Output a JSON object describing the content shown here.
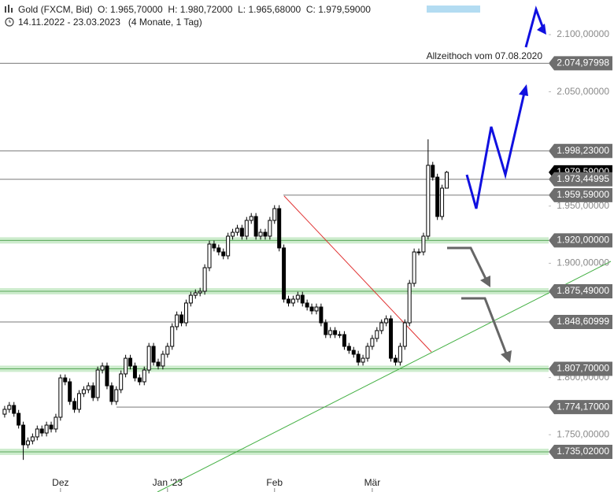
{
  "chart_data": {
    "type": "candlestick",
    "title": "Gold (FXCM, Bid)",
    "ohlc_text": "O: 1.965,70000  H: 1.980,72000  L: 1.965,68000  C: 1.979,59000",
    "range_text": "14.11.2022 - 23.03.2023   (4 Monate, 1 Tag)",
    "annotation": "Allzeithoch vom 07.08.2020",
    "ylim": [
      1717.1,
      2130.3
    ],
    "xlim": [
      -1,
      100.5
    ],
    "yticks": [
      {
        "value": 2100,
        "label": "2.100,00000"
      },
      {
        "value": 2050,
        "label": "2.050,00000"
      },
      {
        "value": 1950,
        "label": "1.950,00000"
      },
      {
        "value": 1900,
        "label": "1.900,00000"
      },
      {
        "value": 1800,
        "label": "1.800,00000"
      },
      {
        "value": 1750,
        "label": "1.750,00000"
      }
    ],
    "xticks": [
      {
        "value": 12,
        "label": "Dez"
      },
      {
        "value": 35,
        "label": "Jan '23"
      },
      {
        "value": 58,
        "label": "Feb"
      },
      {
        "value": 79,
        "label": "Mär"
      }
    ],
    "last_price": {
      "value": 1979.59,
      "label": "1.979,59000"
    },
    "levels": [
      {
        "value": 2074.97998,
        "label": "2.074,97998",
        "kind": "resistance"
      },
      {
        "value": 1998.23,
        "label": "1.998,23000",
        "kind": "resistance"
      },
      {
        "value": 1973.44995,
        "label": "1.973,44995",
        "kind": "resistance"
      },
      {
        "value": 1959.59,
        "label": "1.959,59000",
        "kind": "resistance"
      },
      {
        "value": 1920,
        "label": "1.920,00000",
        "kind": "zone"
      },
      {
        "value": 1875.49,
        "label": "1.875,49000",
        "kind": "zone"
      },
      {
        "value": 1848.60999,
        "label": "1.848,60999",
        "kind": "resistance"
      },
      {
        "value": 1807.7,
        "label": "1.807,70000",
        "kind": "zone"
      },
      {
        "value": 1774.17,
        "label": "1.774,17000",
        "kind": "resistance"
      },
      {
        "value": 1735.02,
        "label": "1.735,02000",
        "kind": "zone"
      }
    ],
    "up_color": "#ffffff",
    "down_color": "#000000",
    "open": [
      1768.0,
      1772.2,
      1775.6,
      1768.7,
      1758.4,
      1741.2,
      1744.6,
      1748.1,
      1755.0,
      1751.5,
      1758.4,
      1755.0,
      1765.3,
      1799.7,
      1796.3,
      1779.1,
      1772.2,
      1786.0,
      1789.4,
      1792.8,
      1782.5,
      1806.6,
      1810.1,
      1792.8,
      1779.1,
      1789.4,
      1803.2,
      1816.9,
      1810.1,
      1799.7,
      1796.3,
      1806.6,
      1827.3,
      1813.5,
      1810.1,
      1820.4,
      1827.3,
      1844.5,
      1854.8,
      1847.9,
      1865.2,
      1872.0,
      1874.1,
      1875.5,
      1896.1,
      1916.8,
      1913.4,
      1909.9,
      1906.5,
      1923.7,
      1927.1,
      1930.6,
      1923.7,
      1937.5,
      1940.9,
      1923.7,
      1927.1,
      1923.7,
      1937.5,
      1947.8,
      1913.4,
      1868.6,
      1865.2,
      1868.6,
      1872.0,
      1865.2,
      1861.7,
      1858.3,
      1861.7,
      1847.9,
      1837.6,
      1841.1,
      1837.6,
      1837.6,
      1827.3,
      1823.8,
      1820.4,
      1813.5,
      1816.9,
      1827.3,
      1834.2,
      1841.1,
      1847.9,
      1851.4,
      1816.9,
      1813.5,
      1827.3,
      1847.9,
      1882.4,
      1909.9,
      1909.9,
      1923.7,
      1985.7,
      1975.3,
      1940.9,
      1965.7
    ],
    "high": [
      1775.2,
      1778.6,
      1778.6,
      1771.7,
      1761.4,
      1747.6,
      1751.1,
      1758.0,
      1758.0,
      1761.4,
      1761.4,
      1768.3,
      1802.7,
      1802.7,
      1799.3,
      1782.1,
      1789.0,
      1792.4,
      1795.8,
      1795.8,
      1809.6,
      1813.1,
      1813.1,
      1795.8,
      1792.4,
      1806.2,
      1819.9,
      1819.9,
      1813.1,
      1802.7,
      1809.6,
      1830.3,
      1830.3,
      1816.5,
      1823.4,
      1830.3,
      1847.5,
      1857.8,
      1857.8,
      1868.2,
      1875.0,
      1877.1,
      1878.5,
      1899.1,
      1919.8,
      1919.8,
      1916.4,
      1912.9,
      1926.7,
      1930.1,
      1933.6,
      1933.6,
      1940.5,
      1943.9,
      1943.9,
      1930.1,
      1930.1,
      1940.5,
      1950.8,
      1950.8,
      1916.4,
      1871.6,
      1871.6,
      1875.0,
      1875.0,
      1868.2,
      1864.7,
      1864.7,
      1864.7,
      1850.9,
      1844.1,
      1844.1,
      1840.6,
      1840.6,
      1830.3,
      1826.8,
      1823.4,
      1819.9,
      1830.3,
      1837.2,
      1844.1,
      1850.9,
      1854.4,
      1854.4,
      1819.9,
      1830.3,
      1850.9,
      1885.4,
      1912.9,
      1912.9,
      1926.7,
      2008.4,
      1988.7,
      1978.3,
      1968.7,
      1980.72
    ],
    "low": [
      1765.0,
      1769.2,
      1765.7,
      1755.4,
      1728.0,
      1738.2,
      1741.6,
      1745.1,
      1748.5,
      1748.5,
      1752.0,
      1752.0,
      1762.3,
      1793.3,
      1776.1,
      1769.2,
      1769.2,
      1783.0,
      1786.4,
      1779.5,
      1779.5,
      1803.6,
      1789.8,
      1776.1,
      1776.1,
      1786.4,
      1800.2,
      1807.1,
      1796.7,
      1793.3,
      1793.3,
      1803.6,
      1810.5,
      1807.1,
      1807.1,
      1817.4,
      1824.3,
      1841.5,
      1844.9,
      1844.9,
      1862.2,
      1869.0,
      1871.1,
      1872.5,
      1893.1,
      1910.4,
      1906.9,
      1903.5,
      1903.5,
      1920.7,
      1924.1,
      1920.7,
      1920.7,
      1934.5,
      1920.7,
      1920.7,
      1920.7,
      1920.7,
      1934.5,
      1910.4,
      1865.6,
      1862.2,
      1862.2,
      1865.6,
      1862.2,
      1858.7,
      1855.3,
      1855.3,
      1844.9,
      1834.6,
      1834.6,
      1834.6,
      1834.6,
      1824.3,
      1820.8,
      1817.4,
      1810.5,
      1810.5,
      1813.9,
      1824.3,
      1831.2,
      1838.1,
      1844.9,
      1813.9,
      1810.5,
      1810.5,
      1824.3,
      1844.9,
      1879.4,
      1906.9,
      1906.9,
      1920.7,
      1972.3,
      1937.9,
      1937.9,
      1965.68
    ],
    "close": [
      1772.2,
      1775.6,
      1768.7,
      1758.4,
      1741.2,
      1744.6,
      1748.1,
      1755.0,
      1751.5,
      1758.4,
      1755.0,
      1765.3,
      1799.7,
      1796.3,
      1779.1,
      1772.2,
      1786.0,
      1789.4,
      1792.8,
      1782.5,
      1806.6,
      1810.1,
      1792.8,
      1779.1,
      1789.4,
      1803.2,
      1816.9,
      1810.1,
      1799.7,
      1796.3,
      1806.6,
      1827.3,
      1813.5,
      1810.1,
      1820.4,
      1827.3,
      1844.5,
      1854.8,
      1847.9,
      1865.2,
      1872.0,
      1874.1,
      1875.5,
      1896.1,
      1916.8,
      1913.4,
      1909.9,
      1906.5,
      1923.7,
      1927.1,
      1930.6,
      1923.7,
      1937.5,
      1940.9,
      1923.7,
      1927.1,
      1923.7,
      1937.5,
      1947.8,
      1913.4,
      1868.6,
      1865.2,
      1868.6,
      1872.0,
      1865.2,
      1861.7,
      1858.3,
      1861.7,
      1847.9,
      1837.6,
      1841.1,
      1837.6,
      1837.6,
      1827.3,
      1823.8,
      1820.4,
      1813.5,
      1816.9,
      1827.3,
      1834.2,
      1841.1,
      1847.9,
      1851.4,
      1816.9,
      1813.5,
      1827.3,
      1847.9,
      1882.4,
      1909.9,
      1909.9,
      1923.7,
      1985.7,
      1975.3,
      1940.9,
      1965.7,
      1979.59
    ]
  }
}
